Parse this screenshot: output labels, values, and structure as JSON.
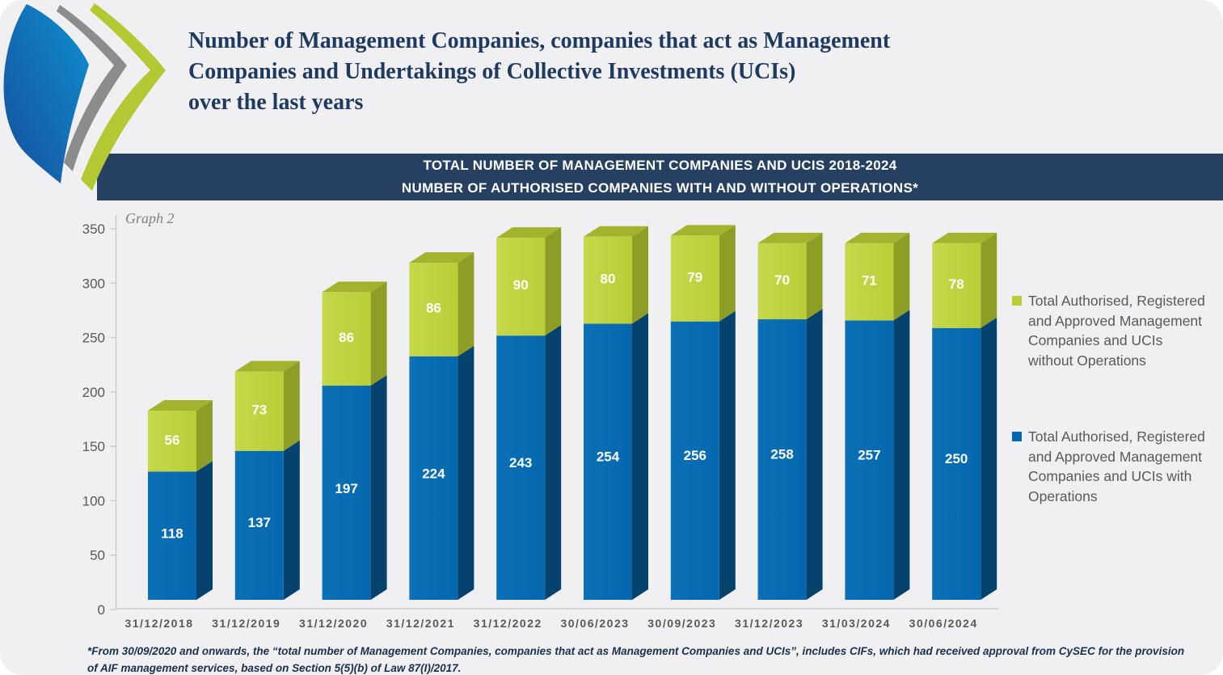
{
  "header": {
    "title_lines": [
      "Number of Management Companies, companies that act as Management",
      "Companies and Undertakings of Collective Investments (UCIs)",
      "over the last years"
    ]
  },
  "banner": {
    "line1": "TOTAL NUMBER OF MANAGEMENT COMPANIES AND UCIS 2018-2024",
    "line2": "NUMBER OF AUTHORISED COMPANIES WITH AND WITHOUT OPERATIONS*"
  },
  "chart": {
    "graph_label": "Graph 2"
  },
  "legend": {
    "items": [
      {
        "color": "#b9cd37",
        "lines": [
          "Total Authorised, Registered",
          "and Approved Management",
          "Companies and UCIs",
          "without Operations"
        ]
      },
      {
        "color": "#0568ae",
        "lines": [
          "Total Authorised, Registered",
          "and Approved Management",
          "Companies and UCIs with",
          "Operations"
        ]
      }
    ]
  },
  "footnote": {
    "lines": [
      "*From 30/09/2020 and onwards, the “total number of Management Companies, companies that act as Management Companies and UCIs”, includes CIFs, which had received approval from CySEC for the provision",
      "of AIF management services, based on Section 5(5)(b) of Law 87(I)/2017."
    ]
  },
  "colors": {
    "page_bg": "#f0f0f2",
    "banner_bg": "#254060",
    "title_text": "#1e3a5f",
    "axis_line": "#c9c9c9",
    "axis_text": "#595959",
    "legend_text": "#595959",
    "value_label": "#ffffff",
    "blue_front": "#0568ae",
    "blue_front_light": "#0b70b6",
    "blue_side": "#05426e",
    "green_front": "#b9cd37",
    "green_front_light": "#c6d84a",
    "green_side": "#8e9d25",
    "green_top": "#a3b32e",
    "logo_blue_dark": "#174f9c",
    "logo_blue_light": "#0e8fd0",
    "logo_gray": "#8c8c8c",
    "logo_green": "#b3c832"
  },
  "chart_data": {
    "type": "bar",
    "stacked": true,
    "style": "3d",
    "title": "TOTAL NUMBER OF MANAGEMENT COMPANIES AND UCIS 2018-2024 — NUMBER OF AUTHORISED COMPANIES WITH AND WITHOUT OPERATIONS*",
    "categories": [
      "31/12/2018",
      "31/12/2019",
      "31/12/2020",
      "31/12/2021",
      "31/12/2022",
      "30/06/2023",
      "30/09/2023",
      "31/12/2023",
      "31/03/2024",
      "30/06/2024"
    ],
    "series": [
      {
        "name": "Total Authorised, Registered and Approved Management Companies and UCIs with Operations",
        "color": "#0568ae",
        "values": [
          118,
          137,
          197,
          224,
          243,
          254,
          256,
          258,
          257,
          250
        ]
      },
      {
        "name": "Total Authorised, Registered and Approved Management Companies and UCIs without Operations",
        "color": "#b9cd37",
        "values": [
          56,
          73,
          86,
          86,
          90,
          80,
          79,
          70,
          71,
          78
        ]
      }
    ],
    "totals": [
      174,
      210,
      283,
      310,
      333,
      334,
      335,
      328,
      328,
      328
    ],
    "ylim": [
      0,
      350
    ],
    "ytick_step": 50,
    "xlabel": "",
    "ylabel": "",
    "grid": false,
    "legend_position": "right"
  }
}
